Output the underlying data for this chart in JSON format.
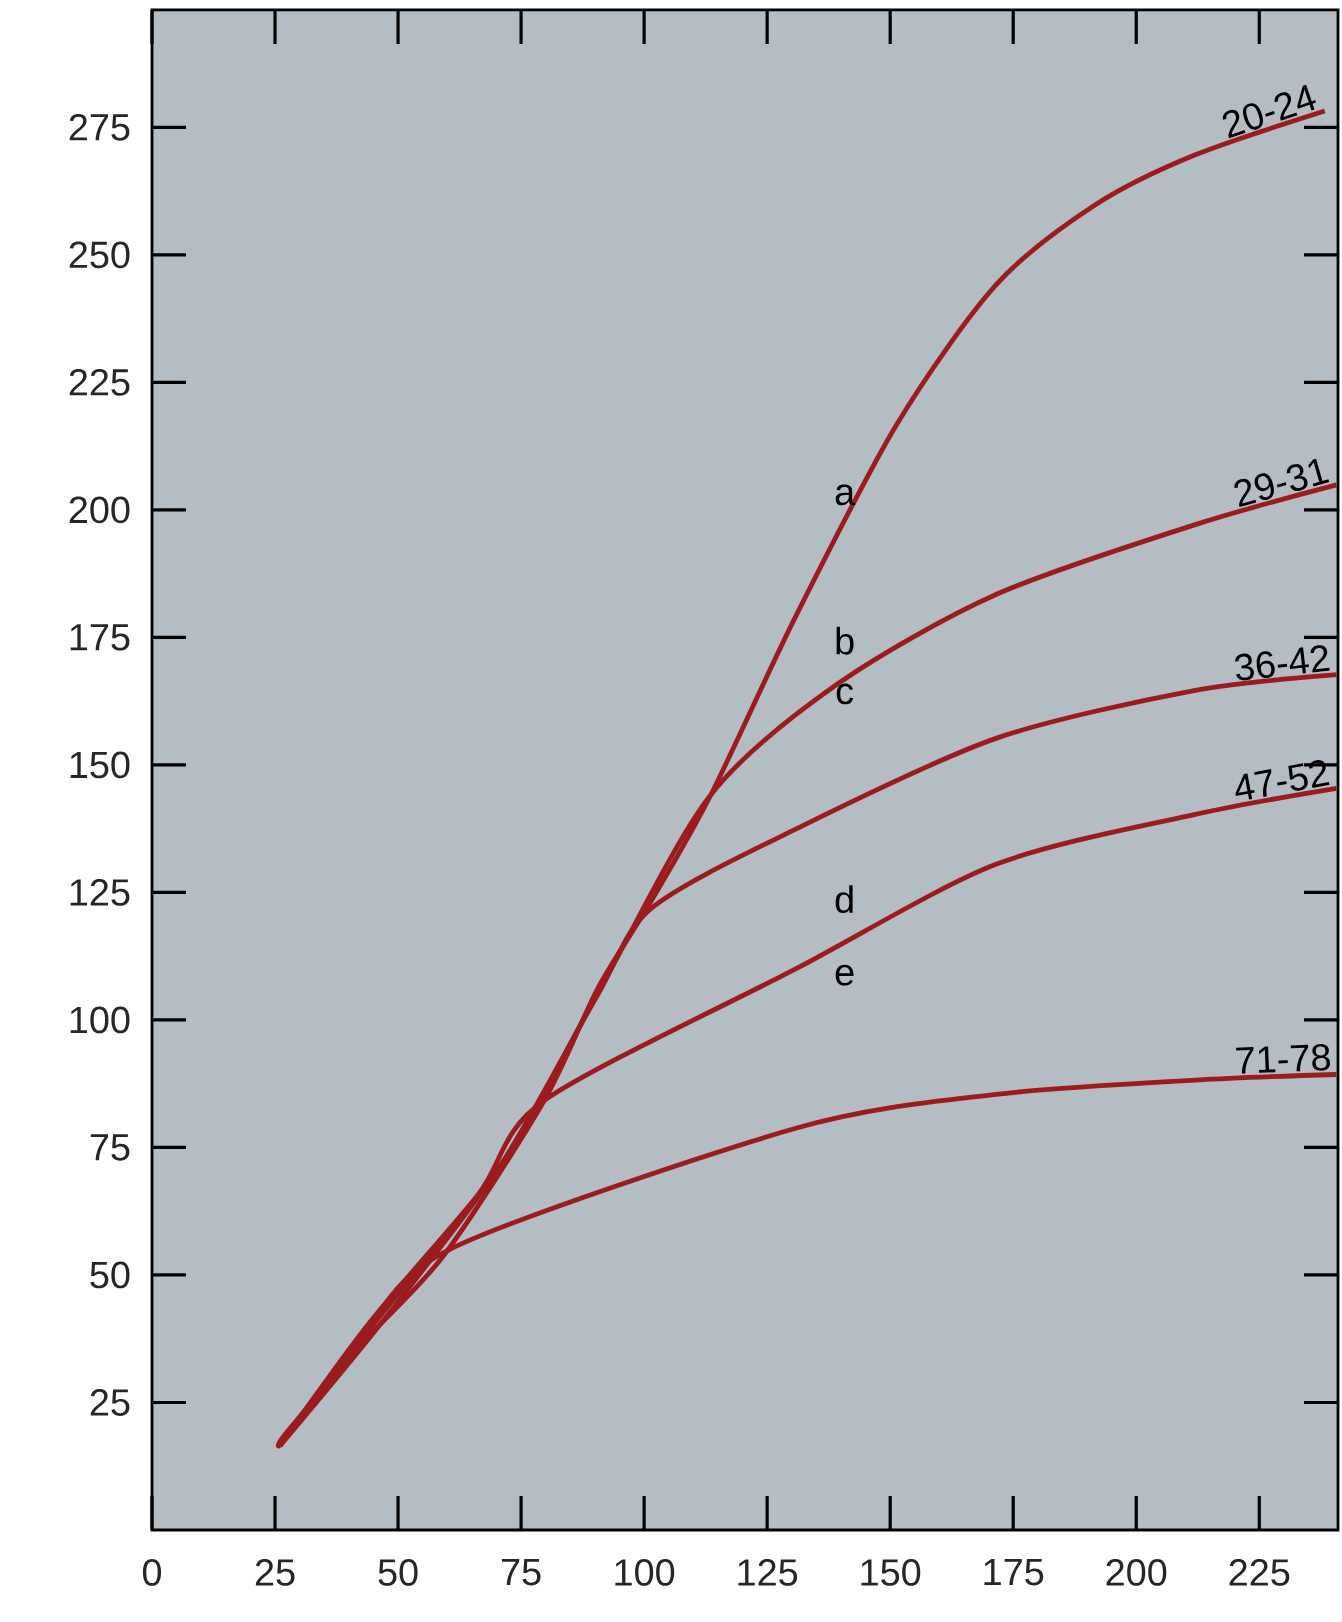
{
  "chart_data": {
    "type": "line",
    "xlim": [
      0,
      241
    ],
    "ylim": [
      0,
      298
    ],
    "xticks": [
      0,
      25,
      50,
      75,
      100,
      125,
      150,
      175,
      200,
      225
    ],
    "yticks": [
      25,
      50,
      75,
      100,
      125,
      150,
      175,
      200,
      225,
      250,
      275
    ],
    "grid": false,
    "series": [
      {
        "name": "20-24",
        "color": "#9b1c1f",
        "x": [
          26,
          27.1,
          43.3,
          59.5,
          79.7,
          90.6,
          101.5,
          113.6,
          131,
          151.3,
          171.5,
          191.7,
          212,
          238.3
        ],
        "values": [
          16.5,
          18.8,
          37.2,
          54.1,
          84.2,
          106.2,
          123.4,
          144.2,
          179.5,
          216.7,
          244.1,
          259.8,
          269.6,
          278.2
        ]
      },
      {
        "name": "29-31",
        "color": "#9b1c1f",
        "x": [
          26,
          48,
          72.4,
          92.6,
          113.6,
          139.2,
          171.5,
          212,
          240.7
        ],
        "values": [
          16.5,
          42.3,
          73.7,
          108.9,
          144.2,
          165.8,
          183.4,
          197.1,
          204.9
        ]
      },
      {
        "name": "36-42",
        "color": "#9b1c1f",
        "x": [
          26,
          46,
          70.4,
          90.6,
          101.5,
          131,
          171.5,
          212,
          240.7
        ],
        "values": [
          16.5,
          41.5,
          70.9,
          105,
          121.9,
          137.5,
          155.2,
          164.6,
          167.7
        ]
      },
      {
        "name": "47-52",
        "color": "#9b1c1f",
        "x": [
          26,
          44,
          66.3,
          79.7,
          131,
          171.5,
          212,
          240.7
        ],
        "values": [
          16.5,
          40.4,
          65.8,
          84.2,
          110.1,
          130.5,
          140.3,
          145.4
        ]
      },
      {
        "name": "71-78",
        "color": "#9b1c1f",
        "x": [
          26,
          42,
          61.1,
          131,
          171.5,
          212,
          240.7
        ],
        "values": [
          16.5,
          37.2,
          55.3,
          78.8,
          85.4,
          88.2,
          89.3
        ]
      }
    ],
    "annotations": [
      "a",
      "b",
      "c",
      "d",
      "e"
    ]
  }
}
